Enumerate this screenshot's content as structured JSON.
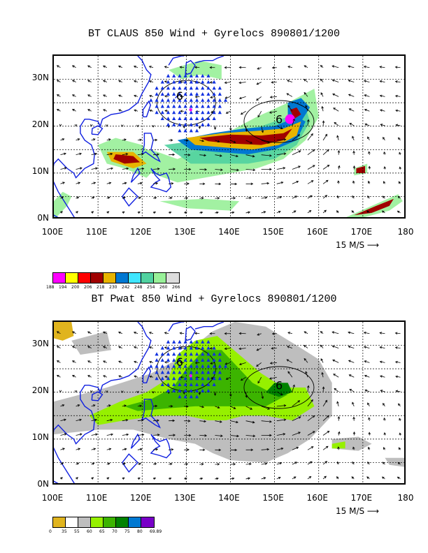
{
  "panels": [
    {
      "title": "BT CLAUS 850 Wind + Gyrelocs 890801/1200",
      "field": "claus",
      "lat_labels": [
        "30N",
        "20N",
        "10N",
        "0N"
      ],
      "lon_labels": [
        "100E",
        "110E",
        "120E",
        "130E",
        "140E",
        "150E",
        "160E",
        "170E",
        "180"
      ],
      "ref_vector": "15 M/S",
      "colorbar_colors": [
        "#ff00ff",
        "#ffff00",
        "#ff0000",
        "#a00000",
        "#e8b400",
        "#0078d2",
        "#40e6ff",
        "#50d2a0",
        "#98f098",
        "#dcdcdc"
      ],
      "colorbar_labels": [
        "188",
        "194",
        "200",
        "206",
        "218",
        "230",
        "242",
        "248",
        "254",
        "260",
        "266"
      ],
      "gyre_markers": [
        "6",
        "6"
      ]
    },
    {
      "title": "BT Pwat 850 Wind + Gyrelocs 890801/1200",
      "field": "pwat",
      "lat_labels": [
        "30N",
        "20N",
        "10N",
        "0N"
      ],
      "lon_labels": [
        "100E",
        "110E",
        "120E",
        "130E",
        "140E",
        "150E",
        "160E",
        "170E",
        "180"
      ],
      "ref_vector": "15 M/S",
      "colorbar_colors": [
        "#e0b41e",
        "#ffffff",
        "#bebebe",
        "#96f000",
        "#3cb400",
        "#008200",
        "#0078d2",
        "#7800c8"
      ],
      "colorbar_labels": [
        "0",
        "35",
        "55",
        "60",
        "65",
        "70",
        "75",
        "80",
        "69.89"
      ],
      "gyre_markers": [
        "6",
        "6"
      ]
    }
  ],
  "map_extent": {
    "lon": [
      100,
      180
    ],
    "lat": [
      0,
      35
    ]
  }
}
